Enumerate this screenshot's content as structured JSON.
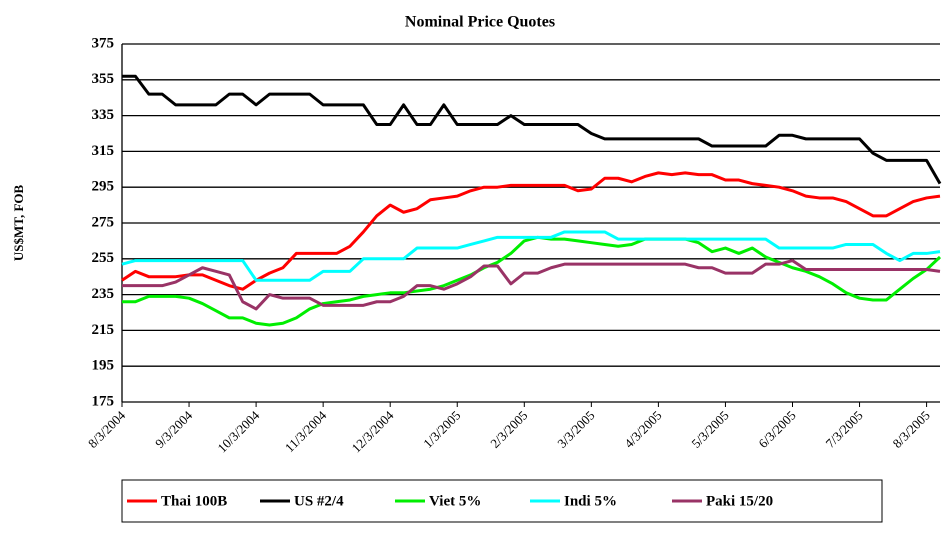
{
  "chart_data": {
    "type": "line",
    "title": "Nominal Price Quotes",
    "y_label": "US$MT, FOB",
    "categories": [
      "8/3/2004",
      null,
      null,
      null,
      null,
      "9/3/2004",
      null,
      null,
      null,
      null,
      "10/3/2004",
      null,
      null,
      null,
      null,
      "11/3/2004",
      null,
      null,
      null,
      null,
      "12/3/2004",
      null,
      null,
      null,
      null,
      "1/3/2005",
      null,
      null,
      null,
      null,
      "2/3/2005",
      null,
      null,
      null,
      null,
      "3/3/2005",
      null,
      null,
      null,
      null,
      "4/3/2005",
      null,
      null,
      null,
      null,
      "5/3/2005",
      null,
      null,
      null,
      null,
      "6/3/2005",
      null,
      null,
      null,
      null,
      "7/3/2005",
      null,
      null,
      null,
      null,
      "8/3/2005",
      null
    ],
    "series": [
      {
        "name": "Thai 100B",
        "color": "#ff0000",
        "values": [
          243,
          248,
          245,
          245,
          245,
          246,
          246,
          243,
          240,
          238,
          243,
          247,
          250,
          258,
          258,
          258,
          258,
          262,
          270,
          279,
          285,
          281,
          283,
          288,
          289,
          290,
          293,
          295,
          295,
          296,
          296,
          296,
          296,
          296,
          293,
          294,
          300,
          300,
          298,
          301,
          303,
          302,
          303,
          302,
          302,
          299,
          299,
          297,
          296,
          295,
          293,
          290,
          289,
          289,
          287,
          283,
          279,
          279,
          283,
          287,
          289,
          290
        ]
      },
      {
        "name": "US #2/4",
        "color": "#000000",
        "values": [
          357,
          357,
          347,
          347,
          341,
          341,
          341,
          341,
          347,
          347,
          341,
          347,
          347,
          347,
          347,
          341,
          341,
          341,
          341,
          330,
          330,
          341,
          330,
          330,
          341,
          330,
          330,
          330,
          330,
          335,
          330,
          330,
          330,
          330,
          330,
          325,
          322,
          322,
          322,
          322,
          322,
          322,
          322,
          322,
          318,
          318,
          318,
          318,
          318,
          324,
          324,
          322,
          322,
          322,
          322,
          322,
          314,
          310,
          310,
          310,
          310,
          297
        ]
      },
      {
        "name": "Viet 5%",
        "color": "#00ee00",
        "values": [
          231,
          231,
          234,
          234,
          234,
          233,
          230,
          226,
          222,
          222,
          219,
          218,
          219,
          222,
          227,
          230,
          231,
          232,
          234,
          235,
          236,
          236,
          237,
          238,
          240,
          243,
          246,
          250,
          253,
          258,
          265,
          267,
          266,
          266,
          265,
          264,
          263,
          262,
          263,
          266,
          266,
          266,
          266,
          264,
          259,
          261,
          258,
          261,
          256,
          253,
          250,
          248,
          245,
          241,
          236,
          233,
          232,
          232,
          238,
          244,
          249,
          256
        ]
      },
      {
        "name": "Indi 5%",
        "color": "#00ffff",
        "values": [
          252,
          254,
          254,
          254,
          254,
          254,
          254,
          254,
          254,
          254,
          243,
          243,
          243,
          243,
          243,
          248,
          248,
          248,
          255,
          255,
          255,
          255,
          261,
          261,
          261,
          261,
          263,
          265,
          267,
          267,
          267,
          267,
          267,
          270,
          270,
          270,
          270,
          266,
          266,
          266,
          266,
          266,
          266,
          266,
          266,
          266,
          266,
          266,
          266,
          261,
          261,
          261,
          261,
          261,
          263,
          263,
          263,
          258,
          254,
          258,
          258,
          259
        ]
      },
      {
        "name": "Paki 15/20",
        "color": "#993366",
        "values": [
          240,
          240,
          240,
          240,
          242,
          246,
          250,
          248,
          246,
          231,
          227,
          235,
          233,
          233,
          233,
          229,
          229,
          229,
          229,
          231,
          231,
          234,
          240,
          240,
          238,
          241,
          245,
          251,
          251,
          241,
          247,
          247,
          250,
          252,
          252,
          252,
          252,
          252,
          252,
          252,
          252,
          252,
          252,
          250,
          250,
          247,
          247,
          247,
          252,
          252,
          254,
          249,
          249,
          249,
          249,
          249,
          249,
          249,
          249,
          249,
          249,
          248
        ]
      }
    ],
    "ylim": [
      175,
      375
    ],
    "yticks": [
      175,
      195,
      215,
      235,
      255,
      275,
      295,
      315,
      335,
      355,
      375
    ],
    "grid": true,
    "legend": "bottom"
  }
}
